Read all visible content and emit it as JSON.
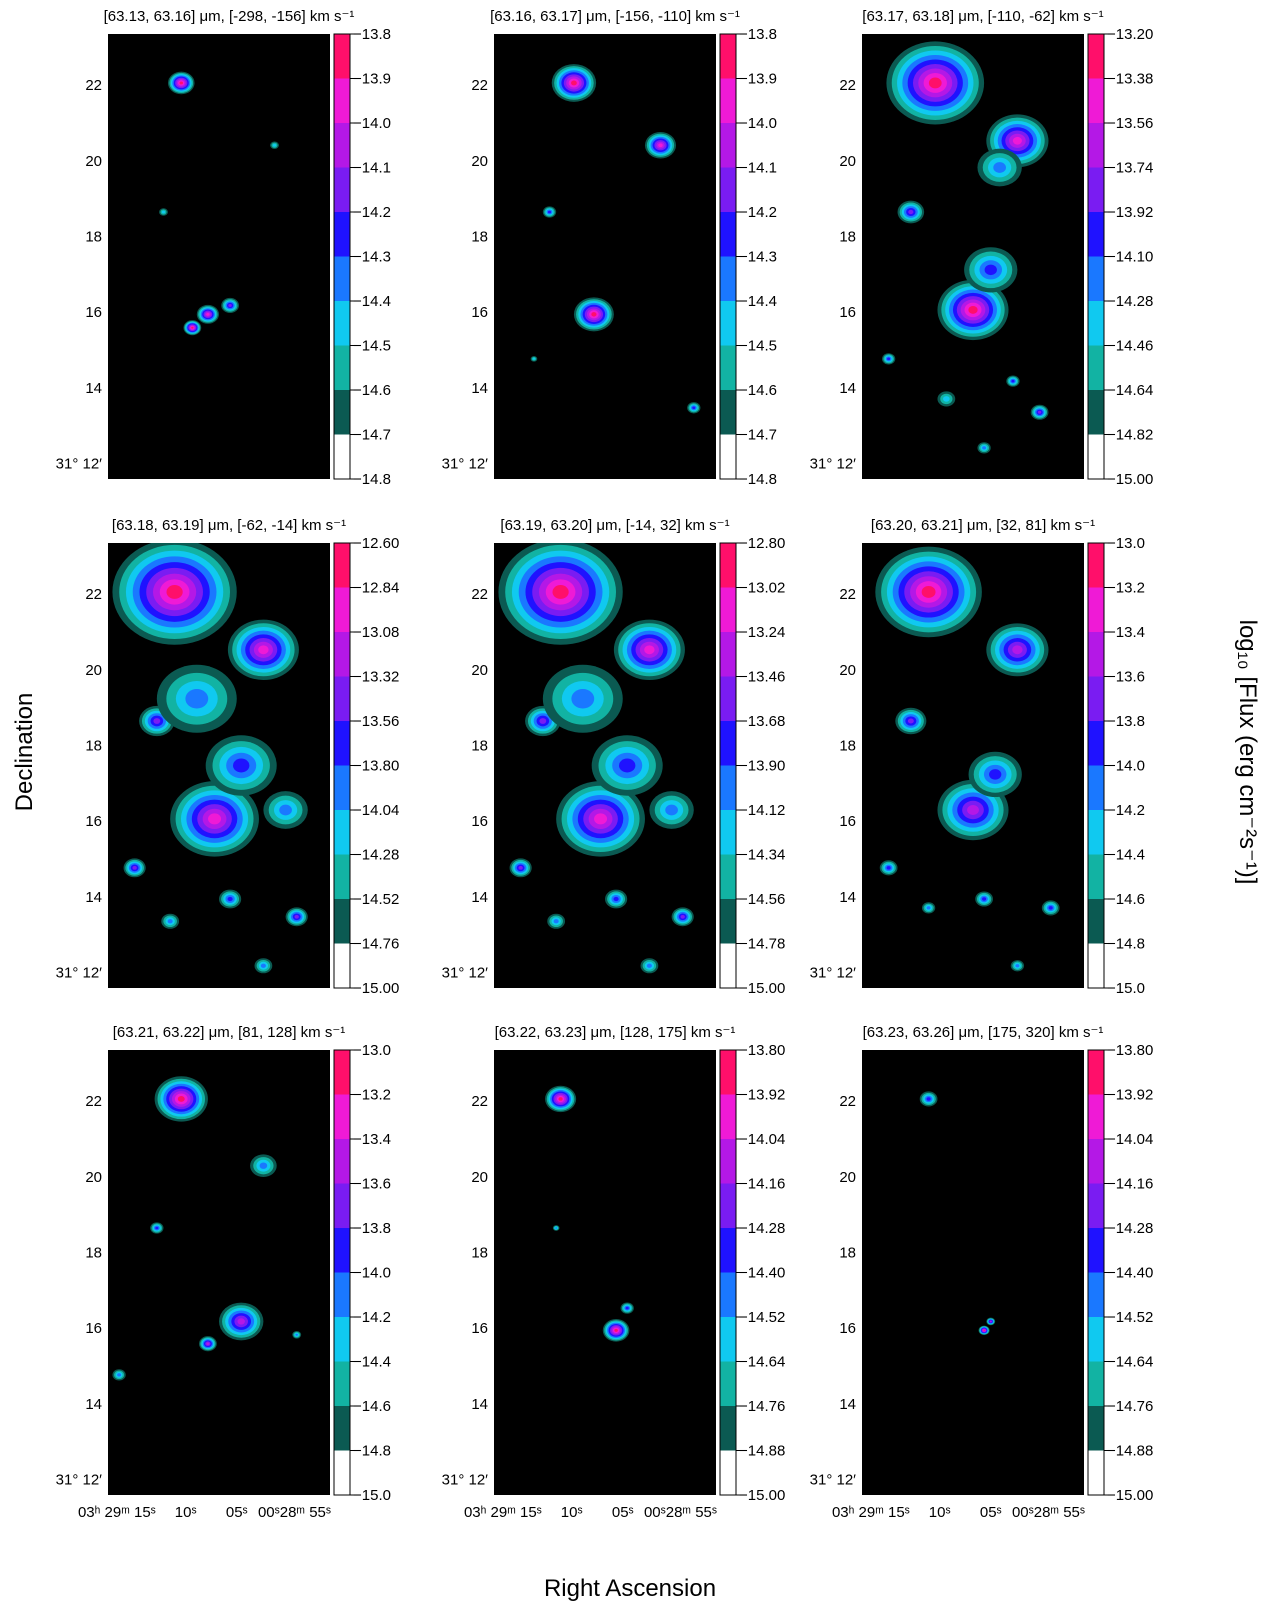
{
  "figure": {
    "ylabel": "Declination",
    "xlabel": "Right Ascension",
    "colorbar_label": "log₁₀ [Flux (erg cm⁻²s⁻¹)]"
  },
  "colormap": [
    "#0b5a52",
    "#12b3a3",
    "#10c9f0",
    "#1a78ff",
    "#1f12ff",
    "#7a1cf2",
    "#b418e6",
    "#ef1ad6",
    "#ff0f6a"
  ],
  "chart_data": [
    {
      "type": "heatmap",
      "title": "[63.13,  63.16] μm, [-298, -156] km s⁻¹",
      "colorbar_ticks": [
        "-13.8",
        "-13.9",
        "-14.0",
        "-14.1",
        "-14.2",
        "-14.3",
        "-14.4",
        "-14.5",
        "-14.6",
        "-14.7",
        "-14.8"
      ],
      "dec_ticks": [
        "22",
        "20",
        "18",
        "16",
        "14",
        "31° 12′"
      ],
      "ra_ticks": []
    },
    {
      "type": "heatmap",
      "title": "[63.16,  63.17] μm, [-156, -110] km s⁻¹",
      "colorbar_ticks": [
        "-13.8",
        "-13.9",
        "-14.0",
        "-14.1",
        "-14.2",
        "-14.3",
        "-14.4",
        "-14.5",
        "-14.6",
        "-14.7",
        "-14.8"
      ],
      "dec_ticks": [
        "22",
        "20",
        "18",
        "16",
        "14",
        "31° 12′"
      ],
      "ra_ticks": []
    },
    {
      "type": "heatmap",
      "title": "[63.17,  63.18] μm, [-110, -62] km s⁻¹",
      "colorbar_ticks": [
        "-13.20",
        "-13.38",
        "-13.56",
        "-13.74",
        "-13.92",
        "-14.10",
        "-14.28",
        "-14.46",
        "-14.64",
        "-14.82",
        "-15.00"
      ],
      "dec_ticks": [
        "22",
        "20",
        "18",
        "16",
        "14",
        "31° 12′"
      ],
      "ra_ticks": []
    },
    {
      "type": "heatmap",
      "title": "[63.18,  63.19] μm, [-62, -14] km s⁻¹",
      "colorbar_ticks": [
        "-12.60",
        "-12.84",
        "-13.08",
        "-13.32",
        "-13.56",
        "-13.80",
        "-14.04",
        "-14.28",
        "-14.52",
        "-14.76",
        "-15.00"
      ],
      "dec_ticks": [
        "22",
        "20",
        "18",
        "16",
        "14",
        "31° 12′"
      ],
      "ra_ticks": []
    },
    {
      "type": "heatmap",
      "title": "[63.19,  63.20] μm, [-14, 32] km s⁻¹",
      "colorbar_ticks": [
        "-12.80",
        "-13.02",
        "-13.24",
        "-13.46",
        "-13.68",
        "-13.90",
        "-14.12",
        "-14.34",
        "-14.56",
        "-14.78",
        "-15.00"
      ],
      "dec_ticks": [
        "22",
        "20",
        "18",
        "16",
        "14",
        "31° 12′"
      ],
      "ra_ticks": []
    },
    {
      "type": "heatmap",
      "title": "[63.20,  63.21] μm, [32, 81] km s⁻¹",
      "colorbar_ticks": [
        "-13.0",
        "-13.2",
        "-13.4",
        "-13.6",
        "-13.8",
        "-14.0",
        "-14.2",
        "-14.4",
        "-14.6",
        "-14.8",
        "-15.0"
      ],
      "dec_ticks": [
        "22",
        "20",
        "18",
        "16",
        "14",
        "31° 12′"
      ],
      "ra_ticks": []
    },
    {
      "type": "heatmap",
      "title": "[63.21,  63.22] μm, [81, 128] km s⁻¹",
      "colorbar_ticks": [
        "-13.0",
        "-13.2",
        "-13.4",
        "-13.6",
        "-13.8",
        "-14.0",
        "-14.2",
        "-14.4",
        "-14.6",
        "-14.8",
        "-15.0"
      ],
      "dec_ticks": [
        "22",
        "20",
        "18",
        "16",
        "14",
        "31° 12′"
      ],
      "ra_ticks": [
        "03ʰ 29ᵐ 15ˢ",
        "10ˢ",
        "05ˢ",
        "00ˢ28ᵐ 55ˢ"
      ]
    },
    {
      "type": "heatmap",
      "title": "[63.22,  63.23] μm, [128, 175] km s⁻¹",
      "colorbar_ticks": [
        "-13.80",
        "-13.92",
        "-14.04",
        "-14.16",
        "-14.28",
        "-14.40",
        "-14.52",
        "-14.64",
        "-14.76",
        "-14.88",
        "-15.00"
      ],
      "dec_ticks": [
        "22",
        "20",
        "18",
        "16",
        "14",
        "31° 12′"
      ],
      "ra_ticks": [
        "03ʰ 29ᵐ 15ˢ",
        "10ˢ",
        "05ˢ",
        "00ˢ28ᵐ 55ˢ"
      ]
    },
    {
      "type": "heatmap",
      "title": "[63.23,  63.26] μm, [175, 320] km s⁻¹",
      "colorbar_ticks": [
        "-13.80",
        "-13.92",
        "-14.04",
        "-14.16",
        "-14.28",
        "-14.40",
        "-14.52",
        "-14.64",
        "-14.76",
        "-14.88",
        "-15.00"
      ],
      "dec_ticks": [
        "22",
        "20",
        "18",
        "16",
        "14",
        "31° 12′"
      ],
      "ra_ticks": [
        "03ʰ 29ᵐ 15ˢ",
        "10ˢ",
        "05ˢ",
        "00ˢ28ᵐ 55ˢ"
      ]
    }
  ]
}
